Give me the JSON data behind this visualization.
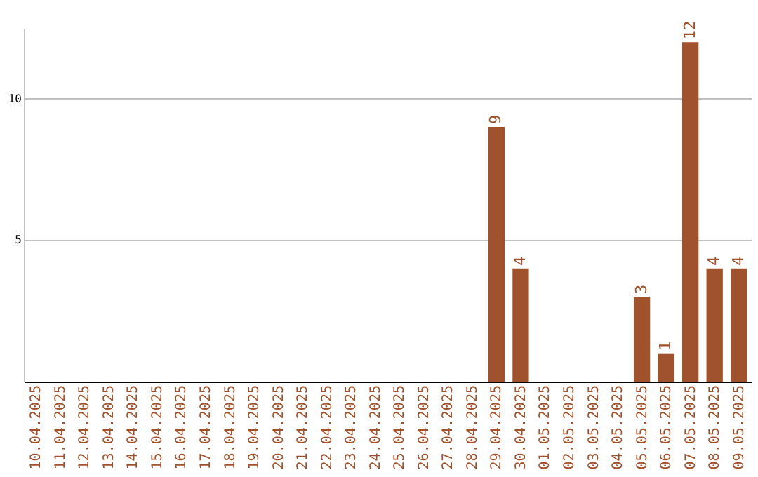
{
  "chart_data": {
    "type": "bar",
    "categories": [
      "10.04.2025",
      "11.04.2025",
      "12.04.2025",
      "13.04.2025",
      "14.04.2025",
      "15.04.2025",
      "16.04.2025",
      "17.04.2025",
      "18.04.2025",
      "19.04.2025",
      "20.04.2025",
      "21.04.2025",
      "22.04.2025",
      "23.04.2025",
      "24.04.2025",
      "25.04.2025",
      "26.04.2025",
      "27.04.2025",
      "28.04.2025",
      "29.04.2025",
      "30.04.2025",
      "01.05.2025",
      "02.05.2025",
      "03.05.2025",
      "04.05.2025",
      "05.05.2025",
      "06.05.2025",
      "07.05.2025",
      "08.05.2025",
      "09.05.2025"
    ],
    "values": [
      0,
      0,
      0,
      0,
      0,
      0,
      0,
      0,
      0,
      0,
      0,
      0,
      0,
      0,
      0,
      0,
      0,
      0,
      0,
      9,
      4,
      0,
      0,
      0,
      0,
      3,
      1,
      12,
      4,
      4
    ],
    "value_labels": [
      null,
      null,
      null,
      null,
      null,
      null,
      null,
      null,
      null,
      null,
      null,
      null,
      null,
      null,
      null,
      null,
      null,
      null,
      null,
      "9",
      "4",
      null,
      null,
      null,
      null,
      "3",
      "1",
      "12",
      "4",
      "4"
    ],
    "color": "#a0522d",
    "ylim": [
      0,
      12.5
    ],
    "yticks": [
      5,
      10
    ],
    "grid": "y"
  }
}
